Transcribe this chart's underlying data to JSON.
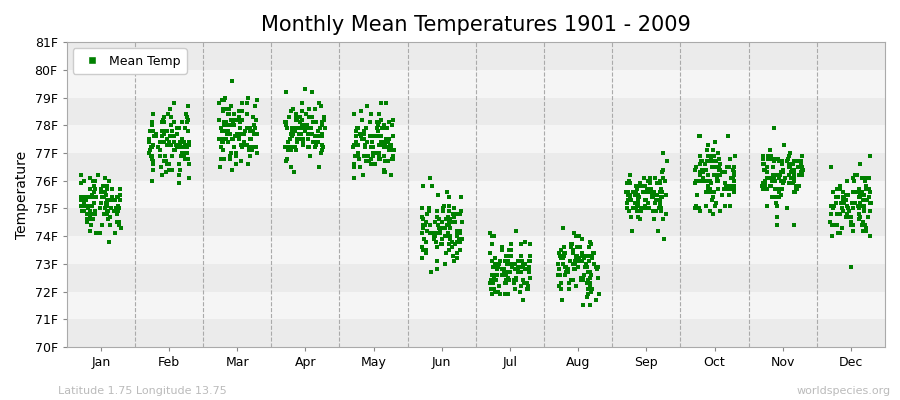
{
  "title": "Monthly Mean Temperatures 1901 - 2009",
  "ylabel": "Temperature",
  "xlabel_labels": [
    "Jan",
    "Feb",
    "Mar",
    "Apr",
    "May",
    "Jun",
    "Jul",
    "Aug",
    "Sep",
    "Oct",
    "Nov",
    "Dec"
  ],
  "subtitle": "Latitude 1.75 Longitude 13.75",
  "watermark": "worldspecies.org",
  "ylim": [
    70,
    81
  ],
  "ytick_labels": [
    "70F",
    "71F",
    "72F",
    "73F",
    "74F",
    "75F",
    "76F",
    "77F",
    "78F",
    "79F",
    "80F",
    "81F"
  ],
  "ytick_values": [
    70,
    71,
    72,
    73,
    74,
    75,
    76,
    77,
    78,
    79,
    80,
    81
  ],
  "dot_color": "#008000",
  "background_color": "#ffffff",
  "n_years": 109,
  "monthly_means": [
    75.2,
    77.2,
    77.8,
    77.8,
    77.2,
    74.2,
    72.8,
    72.9,
    75.4,
    76.1,
    76.2,
    75.2
  ],
  "monthly_stds": [
    0.55,
    0.65,
    0.6,
    0.55,
    0.65,
    0.65,
    0.55,
    0.6,
    0.5,
    0.55,
    0.6,
    0.65
  ],
  "seed": 42,
  "marker_size": 3.5,
  "title_fontsize": 15,
  "axis_label_fontsize": 10,
  "tick_fontsize": 9,
  "legend_fontsize": 9,
  "subtitle_fontsize": 8,
  "watermark_fontsize": 8,
  "stripe_colors": [
    "#ebebeb",
    "#f5f5f5"
  ]
}
